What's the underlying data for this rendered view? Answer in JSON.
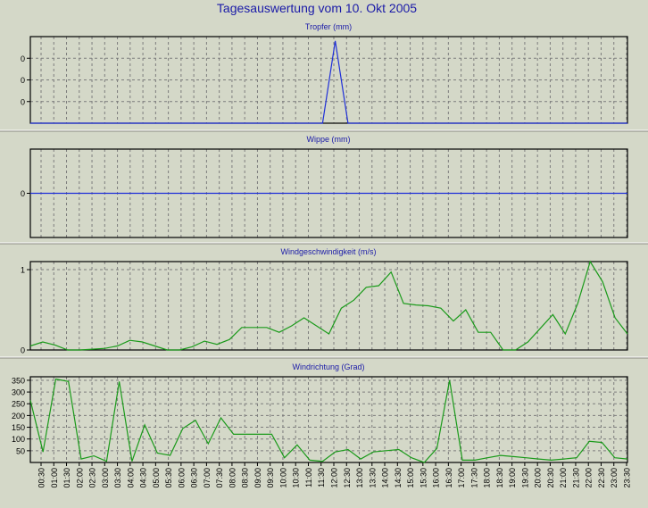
{
  "page_title": "Tagesauswertung vom 10. Okt 2005",
  "colors": {
    "background": "#d4d8c8",
    "plot_background": "#d4d8c8",
    "grid": "#7d7d7d",
    "title": "#1a1aa8",
    "blue_series": "#1f2fd8",
    "green_series": "#1a9a1a"
  },
  "time_labels": [
    "00:30",
    "01:00",
    "01:30",
    "02:00",
    "02:30",
    "03:00",
    "03:30",
    "04:00",
    "04:30",
    "05:00",
    "05:30",
    "06:00",
    "06:30",
    "07:00",
    "07:30",
    "08:00",
    "08:30",
    "09:00",
    "09:30",
    "10:00",
    "10:30",
    "11:00",
    "11:30",
    "12:00",
    "12:30",
    "13:00",
    "13:30",
    "14:00",
    "14:30",
    "15:00",
    "15:30",
    "16:00",
    "16:30",
    "17:00",
    "17:30",
    "18:00",
    "18:30",
    "19:00",
    "19:30",
    "20:00",
    "20:30",
    "21:00",
    "21:30",
    "22:00",
    "22:30",
    "23:00",
    "23:30"
  ],
  "chart_data": [
    {
      "type": "line",
      "title": "Tropfer (mm)",
      "grid": true,
      "ylim": [
        0,
        0.4
      ],
      "yticks": [
        0.1,
        0.2,
        0.3
      ],
      "ytick_labels": [
        "0",
        "0",
        "0"
      ],
      "series": [
        {
          "color": "#1f2fd8",
          "values": [
            0,
            0,
            0,
            0,
            0,
            0,
            0,
            0,
            0,
            0,
            0,
            0,
            0,
            0,
            0,
            0,
            0,
            0,
            0,
            0,
            0,
            0,
            0,
            0,
            0.38,
            0,
            0,
            0,
            0,
            0,
            0,
            0,
            0,
            0,
            0,
            0,
            0,
            0,
            0,
            0,
            0,
            0,
            0,
            0,
            0,
            0,
            0,
            0
          ]
        }
      ]
    },
    {
      "type": "line",
      "title": "Wippe (mm)",
      "grid": true,
      "ylim": [
        -1,
        1
      ],
      "yticks": [
        0
      ],
      "ytick_labels": [
        "0"
      ],
      "series": [
        {
          "color": "#1f2fd8",
          "values": [
            0,
            0,
            0,
            0,
            0,
            0,
            0,
            0,
            0,
            0,
            0,
            0,
            0,
            0,
            0,
            0,
            0,
            0,
            0,
            0,
            0,
            0,
            0,
            0,
            0,
            0,
            0,
            0,
            0,
            0,
            0,
            0,
            0,
            0,
            0,
            0,
            0,
            0,
            0,
            0,
            0,
            0,
            0,
            0,
            0,
            0,
            0,
            0
          ]
        }
      ]
    },
    {
      "type": "line",
      "title": "Windgeschwindigkeit (m/s)",
      "grid": true,
      "ylim": [
        0,
        1.1
      ],
      "yticks": [
        0,
        1
      ],
      "ytick_labels": [
        "0",
        "1"
      ],
      "series": [
        {
          "color": "#1a9a1a",
          "values": [
            0.05,
            0.1,
            0.06,
            0,
            0,
            0.01,
            0.02,
            0.05,
            0.12,
            0.1,
            0.05,
            0,
            0,
            0.04,
            0.11,
            0.07,
            0.13,
            0.28,
            0.28,
            0.28,
            0.22,
            0.3,
            0.4,
            0.3,
            0.2,
            0.52,
            0.62,
            0.78,
            0.8,
            0.97,
            0.58,
            0.56,
            0.55,
            0.52,
            0.36,
            0.5,
            0.22,
            0.22,
            0,
            0,
            0.1,
            0.27,
            0.44,
            0.2,
            0.58,
            1.1,
            0.85,
            0.4,
            0.2
          ]
        }
      ]
    },
    {
      "type": "line",
      "title": "Windrichtung (Grad)",
      "grid": true,
      "ylim": [
        0,
        365
      ],
      "yticks": [
        50,
        100,
        150,
        200,
        250,
        300,
        350
      ],
      "ytick_labels": [
        "50",
        "100",
        "150",
        "200",
        "250",
        "300",
        "350"
      ],
      "series": [
        {
          "color": "#1a9a1a",
          "values": [
            265,
            45,
            355,
            345,
            15,
            28,
            5,
            345,
            5,
            160,
            40,
            30,
            145,
            180,
            80,
            190,
            120,
            120,
            120,
            120,
            20,
            75,
            10,
            5,
            45,
            55,
            15,
            45,
            50,
            55,
            20,
            0,
            60,
            350,
            10,
            10,
            20,
            30,
            25,
            20,
            15,
            10,
            15,
            20,
            90,
            85,
            20,
            15
          ]
        }
      ]
    }
  ]
}
